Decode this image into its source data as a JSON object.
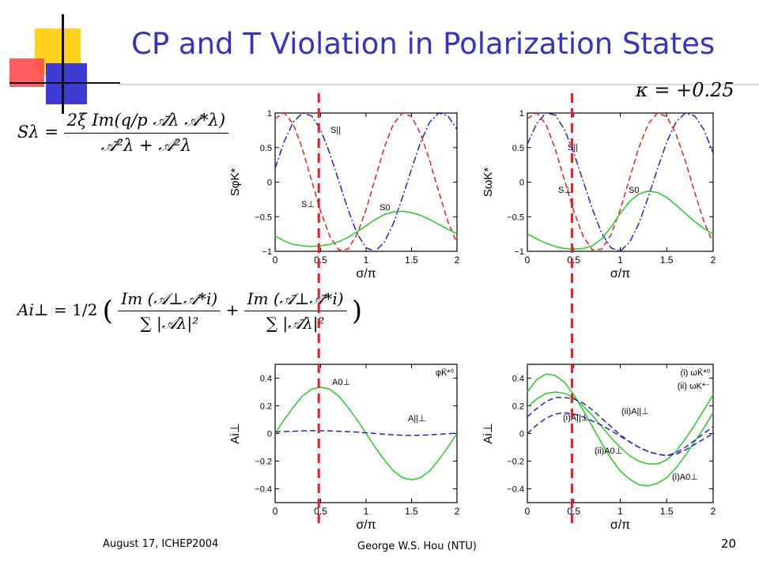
{
  "slide": {
    "title": "CP and T Violation in Polarization States",
    "footer_left": "August 17, ICHEP2004",
    "footer_center": "George W.S. Hou (NTU)",
    "page_number": "20",
    "colors": {
      "title": "#3333cc",
      "guide_line": "#e02020",
      "red_curve": "#e02020",
      "blue_curve": "#2222cc",
      "green_curve": "#22cc22"
    }
  },
  "formulas": {
    "kappa": "κ = +0.25",
    "s_lambda": {
      "lhs": "Sλ =",
      "num": "2ξ Im(q/p 𝒜̄λ 𝒜*λ)",
      "den": "𝒜̄²λ + 𝒜²λ"
    },
    "a_iperp": {
      "lhs": "Ai⊥ =",
      "half": "1/2",
      "num1": "Im (𝒜⊥𝒜*i)",
      "den1": "∑ |𝒜λ|²",
      "num2": "Im (𝒜̄⊥𝒜̄*i)",
      "den2": "∑ |𝒜̄λ|²"
    }
  },
  "chart_data": [
    {
      "type": "line",
      "ylabel": "SφK*",
      "xlabel": "σ/π",
      "xlim": [
        0,
        2
      ],
      "ylim": [
        -1,
        1
      ],
      "xticks": [
        "0",
        "0.5",
        "1",
        "1.5",
        "2"
      ],
      "yticks": [
        "-1",
        "-0.5",
        "0",
        "0.5",
        "1"
      ],
      "series": [
        {
          "name": "S||",
          "style": "dash-dot",
          "color": "#2222cc",
          "x": [
            0,
            0.1,
            0.2,
            0.3,
            0.4,
            0.5,
            0.6,
            0.7,
            0.8,
            0.9,
            1.0,
            1.1,
            1.2,
            1.3,
            1.4,
            1.5,
            1.6,
            1.7,
            1.8,
            1.9,
            2.0
          ],
          "y": [
            0.2,
            0.59,
            0.87,
            1.0,
            0.96,
            0.76,
            0.42,
            0.02,
            -0.39,
            -0.74,
            -0.95,
            -1.0,
            -0.87,
            -0.6,
            -0.22,
            0.19,
            0.58,
            0.87,
            1.0,
            0.96,
            0.76
          ]
        },
        {
          "name": "S⊥",
          "style": "dashed",
          "color": "#e02020",
          "x": [
            0,
            0.1,
            0.2,
            0.3,
            0.4,
            0.5,
            0.6,
            0.7,
            0.8,
            0.9,
            1.0,
            1.1,
            1.2,
            1.3,
            1.4,
            1.5,
            1.6,
            1.7,
            1.8,
            1.9,
            2.0
          ],
          "y": [
            0.92,
            1.0,
            0.84,
            0.48,
            0.03,
            -0.42,
            -0.78,
            -0.98,
            -0.97,
            -0.76,
            -0.4,
            0.05,
            0.5,
            0.84,
            1.0,
            0.95,
            0.7,
            0.31,
            -0.14,
            -0.57,
            -0.88
          ]
        },
        {
          "name": "S0",
          "style": "solid",
          "color": "#22cc22",
          "x": [
            0,
            0.1,
            0.2,
            0.3,
            0.4,
            0.5,
            0.6,
            0.7,
            0.8,
            0.9,
            1.0,
            1.1,
            1.2,
            1.3,
            1.4,
            1.5,
            1.6,
            1.7,
            1.8,
            1.9,
            2.0
          ],
          "y": [
            -0.78,
            -0.85,
            -0.9,
            -0.92,
            -0.93,
            -0.92,
            -0.9,
            -0.86,
            -0.8,
            -0.72,
            -0.63,
            -0.54,
            -0.47,
            -0.43,
            -0.42,
            -0.44,
            -0.48,
            -0.54,
            -0.61,
            -0.68,
            -0.75
          ]
        }
      ],
      "annotations": [
        "S||",
        "S⊥",
        "S0"
      ]
    },
    {
      "type": "line",
      "ylabel": "SωK*",
      "xlabel": "σ/π",
      "xlim": [
        0,
        2
      ],
      "ylim": [
        -1,
        1
      ],
      "xticks": [
        "0",
        "0.5",
        "1",
        "1.5",
        "2"
      ],
      "yticks": [
        "-1",
        "-0.5",
        "0",
        "0.5",
        "1"
      ],
      "series": [
        {
          "name": "S||",
          "style": "dash-dot",
          "color": "#2222cc",
          "x": [
            0,
            0.1,
            0.2,
            0.3,
            0.4,
            0.5,
            0.6,
            0.7,
            0.8,
            0.9,
            1.0,
            1.1,
            1.2,
            1.3,
            1.4,
            1.5,
            1.6,
            1.7,
            1.8,
            1.9,
            2.0
          ],
          "y": [
            0.55,
            0.85,
            1.0,
            0.97,
            0.76,
            0.42,
            0.02,
            -0.39,
            -0.74,
            -0.95,
            -1.0,
            -0.87,
            -0.6,
            -0.22,
            0.19,
            0.58,
            0.87,
            1.0,
            0.96,
            0.76,
            0.42
          ]
        },
        {
          "name": "S⊥",
          "style": "dashed",
          "color": "#e02020",
          "x": [
            0,
            0.1,
            0.2,
            0.3,
            0.4,
            0.5,
            0.6,
            0.7,
            0.8,
            0.9,
            1.0,
            1.1,
            1.2,
            1.3,
            1.4,
            1.5,
            1.6,
            1.7,
            1.8,
            1.9,
            2.0
          ],
          "y": [
            0.92,
            1.0,
            0.84,
            0.48,
            0.03,
            -0.42,
            -0.78,
            -0.98,
            -0.97,
            -0.76,
            -0.4,
            0.05,
            0.5,
            0.84,
            1.0,
            0.95,
            0.7,
            0.31,
            -0.14,
            -0.57,
            -0.88
          ]
        },
        {
          "name": "S0",
          "style": "solid",
          "color": "#22cc22",
          "x": [
            0,
            0.1,
            0.2,
            0.3,
            0.4,
            0.5,
            0.6,
            0.7,
            0.8,
            0.9,
            1.0,
            1.1,
            1.2,
            1.3,
            1.4,
            1.5,
            1.6,
            1.7,
            1.8,
            1.9,
            2.0
          ],
          "y": [
            -0.75,
            -0.82,
            -0.88,
            -0.93,
            -0.96,
            -0.97,
            -0.96,
            -0.92,
            -0.82,
            -0.65,
            -0.45,
            -0.28,
            -0.17,
            -0.13,
            -0.15,
            -0.22,
            -0.33,
            -0.45,
            -0.57,
            -0.67,
            -0.75
          ]
        }
      ],
      "annotations": [
        "S||",
        "S⊥",
        "S0"
      ]
    },
    {
      "type": "line",
      "ylabel": "Ai⊥",
      "xlabel": "σ/π",
      "xlim": [
        0,
        2
      ],
      "ylim": [
        -0.5,
        0.5
      ],
      "xticks": [
        "0",
        "0.5",
        "1",
        "1.5",
        "2"
      ],
      "yticks": [
        "-0.4",
        "-0.2",
        "0",
        "0.2",
        "0.4"
      ],
      "legend": "φK̄*⁰",
      "series": [
        {
          "name": "A0⊥",
          "style": "solid",
          "color": "#22cc22",
          "x": [
            0,
            0.1,
            0.2,
            0.3,
            0.4,
            0.5,
            0.6,
            0.7,
            0.8,
            0.9,
            1.0,
            1.1,
            1.2,
            1.3,
            1.4,
            1.5,
            1.6,
            1.7,
            1.8,
            1.9,
            2.0
          ],
          "y": [
            0,
            0.1,
            0.19,
            0.27,
            0.32,
            0.335,
            0.32,
            0.27,
            0.19,
            0.1,
            0,
            -0.1,
            -0.19,
            -0.27,
            -0.32,
            -0.335,
            -0.32,
            -0.27,
            -0.19,
            -0.1,
            0
          ]
        },
        {
          "name": "A||⊥",
          "style": "dashed",
          "color": "#2222cc",
          "x": [
            0,
            0.1,
            0.2,
            0.3,
            0.4,
            0.5,
            0.6,
            0.7,
            0.8,
            0.9,
            1.0,
            1.1,
            1.2,
            1.3,
            1.4,
            1.5,
            1.6,
            1.7,
            1.8,
            1.9,
            2.0
          ],
          "y": [
            0.01,
            0.013,
            0.016,
            0.019,
            0.02,
            0.02,
            0.019,
            0.016,
            0.013,
            0.01,
            0.005,
            0.0,
            -0.006,
            -0.01,
            -0.013,
            -0.014,
            -0.013,
            -0.01,
            -0.006,
            -0.002,
            0.003
          ]
        }
      ],
      "annotations": [
        "A0⊥",
        "A||⊥"
      ]
    },
    {
      "type": "line",
      "ylabel": "Ai⊥",
      "xlabel": "σ/π",
      "xlim": [
        0,
        2
      ],
      "ylim": [
        -0.5,
        0.5
      ],
      "xticks": [
        "0",
        "0.5",
        "1",
        "1.5",
        "2"
      ],
      "yticks": [
        "-0.4",
        "-0.2",
        "0",
        "0.2",
        "0.4"
      ],
      "legend": [
        "(i) ωK̄*⁰",
        "(ii) ωK*⁻"
      ],
      "series": [
        {
          "name": "(i)A0⊥",
          "style": "solid",
          "color": "#22cc22",
          "x": [
            0,
            0.1,
            0.2,
            0.3,
            0.4,
            0.5,
            0.6,
            0.7,
            0.8,
            0.9,
            1.0,
            1.1,
            1.2,
            1.3,
            1.4,
            1.5,
            1.6,
            1.7,
            1.8,
            1.9,
            2.0
          ],
          "y": [
            0.3,
            0.39,
            0.43,
            0.42,
            0.37,
            0.28,
            0.17,
            0.05,
            -0.07,
            -0.18,
            -0.27,
            -0.33,
            -0.37,
            -0.38,
            -0.36,
            -0.32,
            -0.25,
            -0.16,
            -0.06,
            0.04,
            0.15
          ]
        },
        {
          "name": "(ii)A0⊥",
          "style": "solid",
          "color": "#22cc22",
          "x": [
            0,
            0.1,
            0.2,
            0.3,
            0.4,
            0.5,
            0.6,
            0.7,
            0.8,
            0.9,
            1.0,
            1.1,
            1.2,
            1.3,
            1.4,
            1.5,
            1.6,
            1.7,
            1.8,
            1.9,
            2.0
          ],
          "y": [
            0.19,
            0.25,
            0.29,
            0.3,
            0.29,
            0.26,
            0.2,
            0.13,
            0.05,
            -0.03,
            -0.1,
            -0.16,
            -0.2,
            -0.22,
            -0.22,
            -0.19,
            -0.13,
            -0.04,
            0.06,
            0.17,
            0.28
          ]
        },
        {
          "name": "(i)A||⊥",
          "style": "dashed",
          "color": "#2222cc",
          "x": [
            0,
            0.1,
            0.2,
            0.3,
            0.4,
            0.5,
            0.6,
            0.7,
            0.8,
            0.9,
            1.0,
            1.1,
            1.2,
            1.3,
            1.4,
            1.5,
            1.6,
            1.7,
            1.8,
            1.9,
            2.0
          ],
          "y": [
            0.12,
            0.18,
            0.23,
            0.26,
            0.26,
            0.25,
            0.22,
            0.17,
            0.11,
            0.05,
            -0.01,
            -0.06,
            -0.1,
            -0.13,
            -0.15,
            -0.16,
            -0.14,
            -0.1,
            -0.05,
            0.0,
            0.05
          ]
        },
        {
          "name": "(ii)A||⊥",
          "style": "dashed",
          "color": "#2222cc",
          "x": [
            0,
            0.1,
            0.2,
            0.3,
            0.4,
            0.5,
            0.6,
            0.7,
            0.8,
            0.9,
            1.0,
            1.1,
            1.2,
            1.3,
            1.4,
            1.5,
            1.6,
            1.7,
            1.8,
            1.9,
            2.0
          ],
          "y": [
            0.0,
            0.06,
            0.11,
            0.14,
            0.15,
            0.14,
            0.12,
            0.09,
            0.06,
            0.02,
            -0.02,
            -0.06,
            -0.1,
            -0.13,
            -0.15,
            -0.16,
            -0.15,
            -0.12,
            -0.08,
            -0.04,
            0.0
          ]
        }
      ],
      "annotations": [
        "(i)A||⊥",
        "(ii)A||⊥",
        "(ii)A0⊥",
        "(i)A0⊥"
      ]
    }
  ],
  "guide_lines": {
    "x": 0.48
  }
}
